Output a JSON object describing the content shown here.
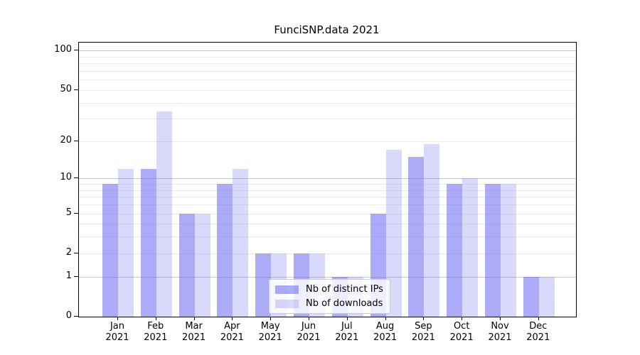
{
  "chart_data": {
    "type": "bar",
    "title": "FunciSNP.data 2021",
    "categories": [
      "Jan 2021",
      "Feb 2021",
      "Mar 2021",
      "Apr 2021",
      "May 2021",
      "Jun 2021",
      "Jul 2021",
      "Aug 2021",
      "Sep 2021",
      "Oct 2021",
      "Nov 2021",
      "Dec 2021"
    ],
    "series": [
      {
        "name": "Nb of distinct IPs",
        "values": [
          9,
          12,
          5,
          9,
          2,
          2,
          1,
          5,
          15,
          9,
          9,
          1
        ],
        "color": "rgba(102,102,240,0.55)"
      },
      {
        "name": "Nb of downloads",
        "values": [
          12,
          34,
          5,
          12,
          2,
          2,
          1,
          17,
          19,
          10,
          9,
          1
        ],
        "color": "rgba(102,102,240,0.25)"
      }
    ],
    "xlabel": "",
    "ylabel": "",
    "yscale": "log1p",
    "ylim": [
      0,
      115
    ],
    "yticks": [
      0,
      1,
      2,
      5,
      10,
      20,
      50,
      100
    ],
    "minor_gridlines": [
      2,
      3,
      4,
      5,
      6,
      7,
      8,
      9,
      20,
      30,
      40,
      50,
      60,
      70,
      80,
      90
    ],
    "major_gridlines": [
      1,
      10,
      100
    ],
    "grid": true,
    "legend_position": "lower center",
    "colors": {
      "bar_distinct_ips": "rgba(102,102,240,0.55)",
      "bar_downloads": "rgba(102,102,240,0.25)",
      "major_grid": "#c6c6c6",
      "minor_grid": "#ececec",
      "spine": "#000000",
      "text": "#000000",
      "legend_border": "#cccccc"
    }
  }
}
